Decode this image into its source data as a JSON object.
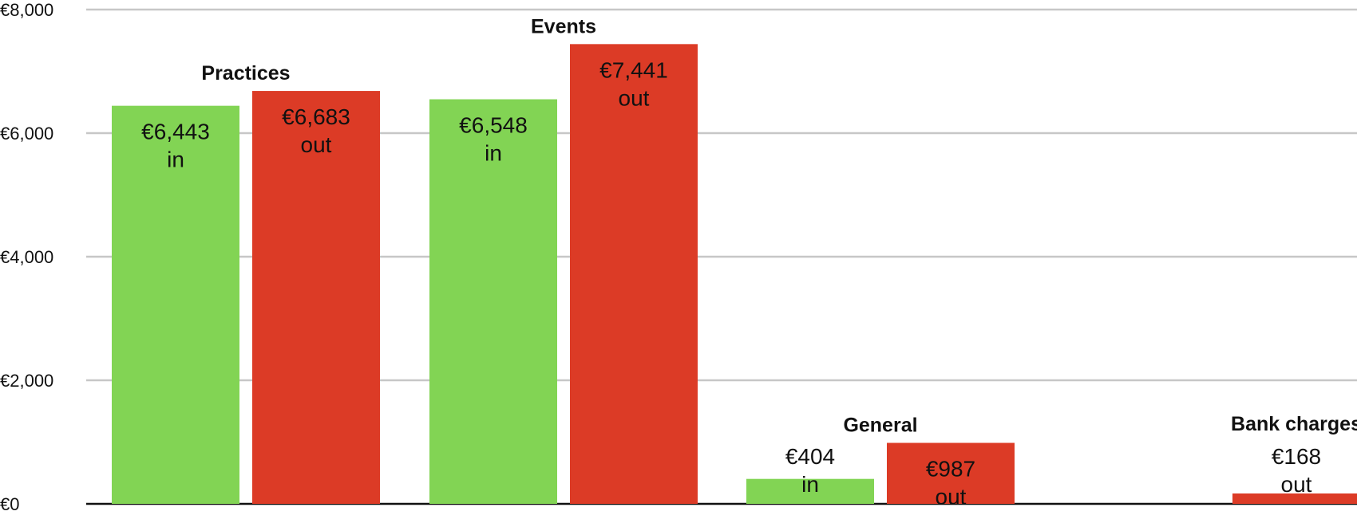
{
  "chart_data": {
    "type": "bar",
    "title": "",
    "xlabel": "",
    "ylabel": "",
    "ylim": [
      0,
      8000
    ],
    "yticks": [
      {
        "value": 0,
        "label": "€0"
      },
      {
        "value": 2000,
        "label": "€2,000"
      },
      {
        "value": 4000,
        "label": "€4,000"
      },
      {
        "value": 6000,
        "label": "€6,000"
      },
      {
        "value": 8000,
        "label": "€8,000"
      }
    ],
    "grid": true,
    "legend": "none",
    "categories": [
      "Practices",
      "Events",
      "General",
      "Bank charges"
    ],
    "series": [
      {
        "key": "in",
        "color": "#82d454",
        "values": [
          6443,
          6548,
          404,
          null
        ],
        "labels": [
          "€6,443",
          "€6,548",
          "€404",
          ""
        ],
        "suffix": "in"
      },
      {
        "key": "out",
        "color": "#dc3b26",
        "values": [
          6683,
          7441,
          987,
          168
        ],
        "labels": [
          "€6,683",
          "€7,441",
          "€987",
          "€168"
        ],
        "suffix": "out"
      }
    ]
  }
}
